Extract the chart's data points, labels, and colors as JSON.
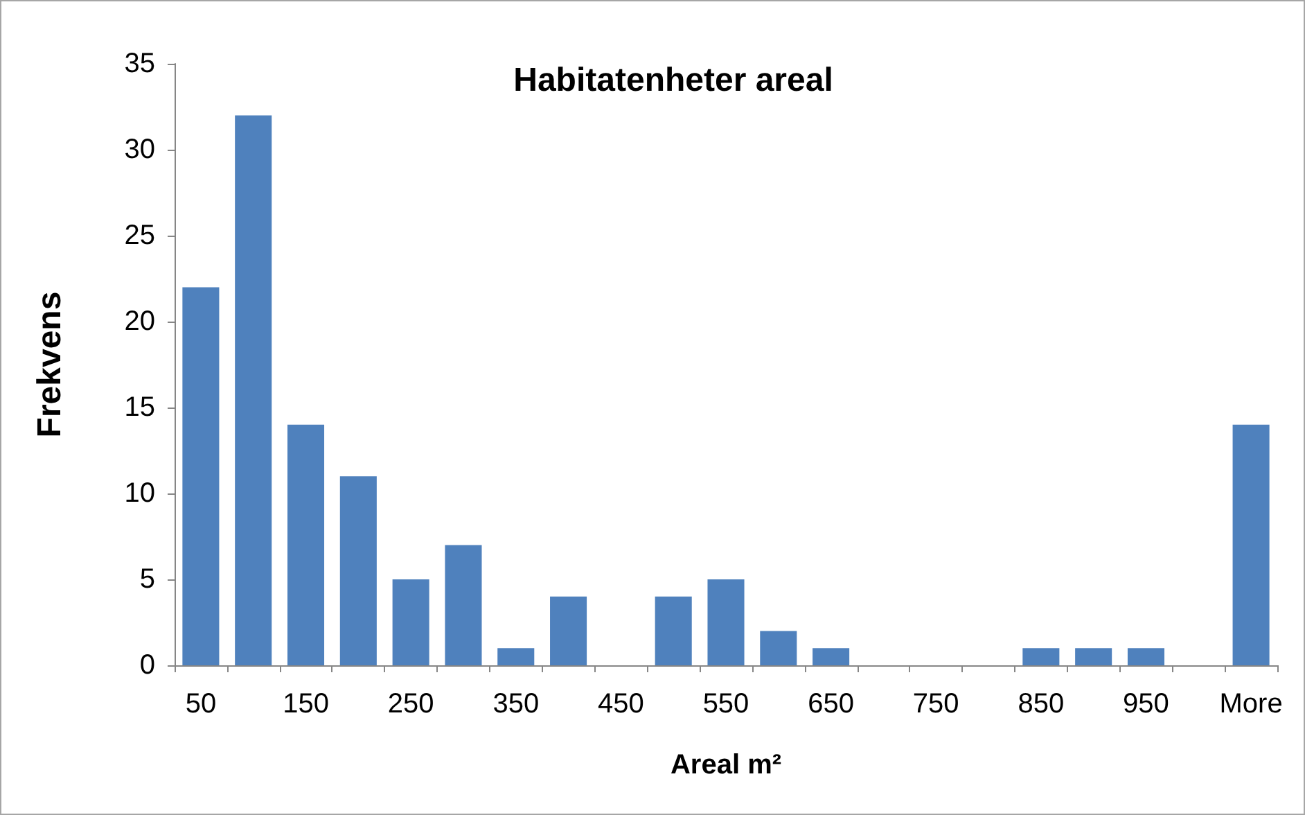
{
  "chart_data": {
    "type": "bar",
    "title": "Habitatenheter areal",
    "xlabel": "Areal m²",
    "ylabel": "Frekvens",
    "categories": [
      "50",
      null,
      "150",
      null,
      "250",
      null,
      "350",
      null,
      "450",
      null,
      "550",
      null,
      "650",
      null,
      "750",
      null,
      "850",
      null,
      "950",
      null,
      "More"
    ],
    "values": [
      22,
      32,
      14,
      11,
      5,
      7,
      1,
      4,
      0,
      4,
      5,
      2,
      1,
      0,
      0,
      0,
      1,
      1,
      1,
      0,
      14
    ],
    "color": "#4f81bd",
    "ylim": [
      0,
      35
    ],
    "yticks": [
      0,
      5,
      10,
      15,
      20,
      25,
      30,
      35
    ]
  }
}
